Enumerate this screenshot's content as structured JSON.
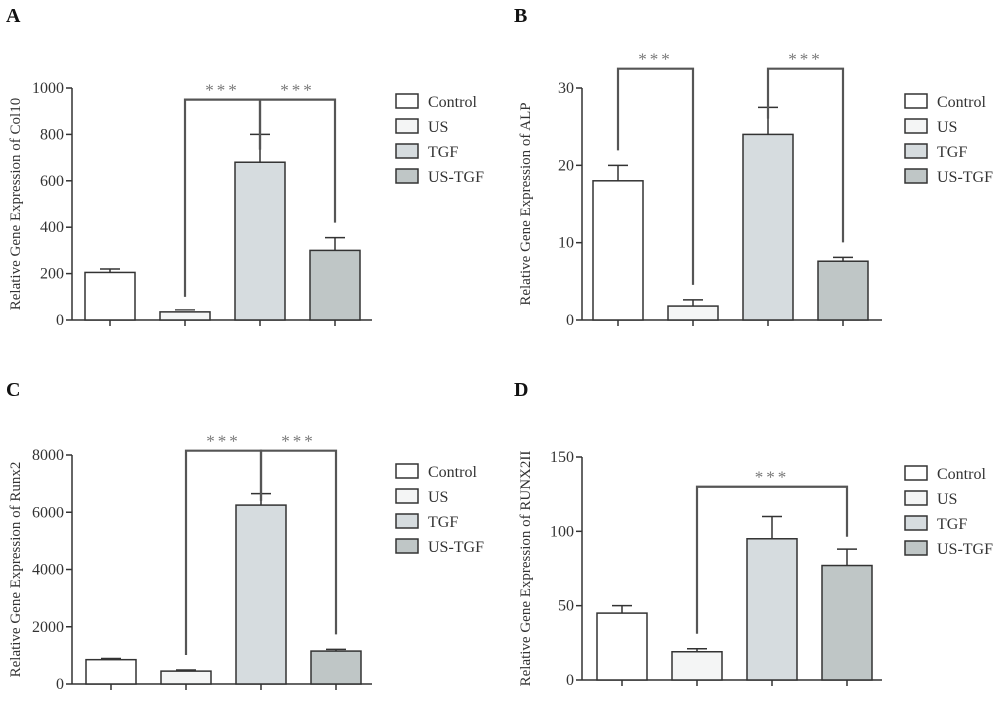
{
  "legend_entries": [
    "Control",
    "US",
    "TGF",
    "US-TGF"
  ],
  "colors": {
    "Control": "#ffffff",
    "US": "#f4f5f5",
    "TGF": "#d6dcdf",
    "US-TGF": "#bfc6c6",
    "axis": "#333333",
    "bracket": "#555555",
    "stars": "#777777"
  },
  "chart_data": [
    {
      "panel_label": "A",
      "type": "bar",
      "ylabel": "Relative Gene Expression of Col10",
      "ylim": [
        0,
        1000
      ],
      "yticks": [
        0,
        200,
        400,
        600,
        800,
        1000
      ],
      "categories": [
        "Control",
        "US",
        "TGF",
        "US-TGF"
      ],
      "values": [
        205,
        35,
        680,
        300
      ],
      "errors": [
        15,
        0,
        120,
        55
      ],
      "significance": [
        {
          "from": 1,
          "to": 2,
          "height": 950,
          "stars": "***"
        },
        {
          "from": 2,
          "to": 3,
          "height": 950,
          "stars": "***"
        }
      ],
      "legend_placement": "right"
    },
    {
      "panel_label": "B",
      "type": "bar",
      "ylabel": "Relative Gene Expression of ALP",
      "ylim": [
        0,
        30
      ],
      "yticks": [
        0,
        10,
        20,
        30
      ],
      "categories": [
        "Control",
        "US",
        "TGF",
        "US-TGF"
      ],
      "values": [
        18,
        1.8,
        24,
        7.6
      ],
      "errors": [
        2,
        0.8,
        3.5,
        0.5
      ],
      "significance": [
        {
          "from": 0,
          "to": 1,
          "height": 32.5,
          "stars": "***"
        },
        {
          "from": 2,
          "to": 3,
          "height": 32.5,
          "stars": "***"
        }
      ],
      "legend_placement": "right"
    },
    {
      "panel_label": "C",
      "type": "bar",
      "ylabel": "Relative Gene Expression of Runx2",
      "ylim": [
        0,
        8000
      ],
      "yticks": [
        0,
        2000,
        4000,
        6000,
        8000
      ],
      "categories": [
        "Control",
        "US",
        "TGF",
        "US-TGF"
      ],
      "values": [
        850,
        450,
        6250,
        1150
      ],
      "errors": [
        40,
        40,
        400,
        60
      ],
      "significance": [
        {
          "from": 1,
          "to": 2,
          "height": 8150,
          "stars": "***"
        },
        {
          "from": 2,
          "to": 3,
          "height": 8150,
          "stars": "***"
        }
      ],
      "legend_placement": "right"
    },
    {
      "panel_label": "D",
      "type": "bar",
      "ylabel": "Relative Gene Expression of RUNX2II",
      "ylim": [
        0,
        150
      ],
      "yticks": [
        0,
        50,
        100,
        150
      ],
      "categories": [
        "Control",
        "US",
        "TGF",
        "US-TGF"
      ],
      "values": [
        45,
        19,
        95,
        77
      ],
      "errors": [
        5,
        2,
        15,
        11
      ],
      "significance": [
        {
          "from": 1,
          "to": 3,
          "height": 130,
          "stars": "***"
        }
      ],
      "legend_placement": "right"
    }
  ]
}
